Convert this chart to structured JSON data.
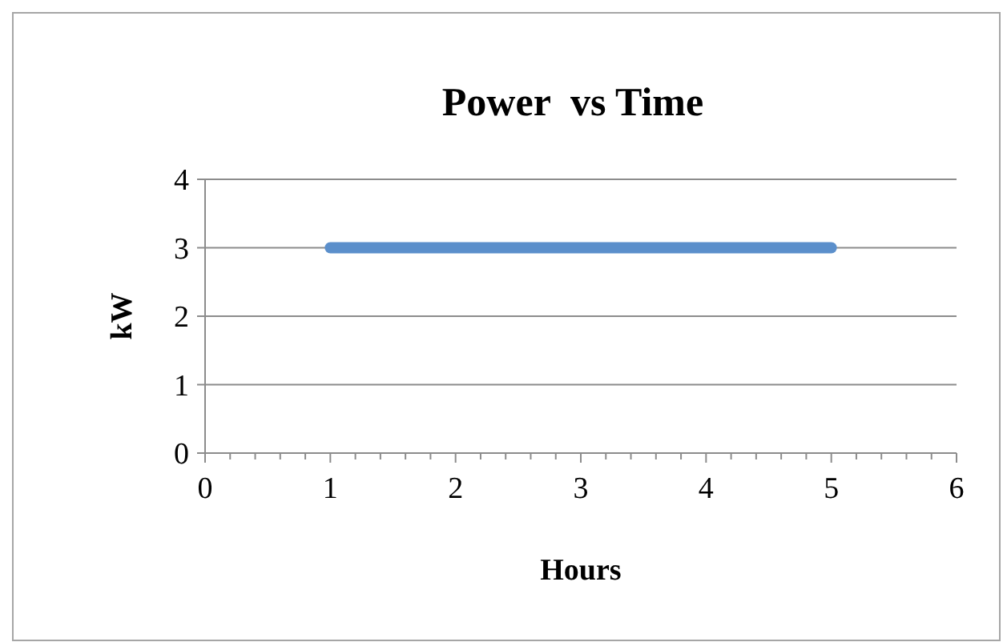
{
  "chart_data": {
    "type": "line",
    "title": "Power  vs Time",
    "xlabel": "Hours",
    "ylabel": "kW",
    "x": [
      1,
      5
    ],
    "series": [
      {
        "color": "#5b8fcb",
        "values": [
          3,
          3
        ]
      }
    ],
    "xlim": [
      0,
      6
    ],
    "ylim": [
      0,
      4
    ],
    "xticks": [
      0,
      {
        "value": 0.2,
        "label": null
      },
      {
        "value": 0.4,
        "label": null
      },
      {
        "value": 0.6,
        "label": null
      },
      {
        "value": 0.8,
        "label": null
      },
      1,
      {
        "value": 1.2,
        "label": null
      },
      {
        "value": 1.4,
        "label": null
      },
      {
        "value": 1.6,
        "label": null
      },
      {
        "value": 1.8,
        "label": null
      },
      2,
      {
        "value": 2.2,
        "label": null
      },
      {
        "value": 2.4,
        "label": null
      },
      {
        "value": 2.6,
        "label": null
      },
      {
        "value": 2.8,
        "label": null
      },
      3,
      {
        "value": 3.2,
        "label": null
      },
      {
        "value": 3.4,
        "label": null
      },
      {
        "value": 3.6,
        "label": null
      },
      {
        "value": 3.8,
        "label": null
      },
      4,
      {
        "value": 4.2,
        "label": null
      },
      {
        "value": 4.4,
        "label": null
      },
      {
        "value": 4.6,
        "label": null
      },
      {
        "value": 4.8,
        "label": null
      },
      5,
      {
        "value": 5.2,
        "label": null
      },
      {
        "value": 5.4,
        "label": null
      },
      {
        "value": 5.6,
        "label": null
      },
      {
        "value": 5.8,
        "label": null
      },
      6
    ],
    "yticks": [
      0,
      1,
      2,
      3,
      4
    ],
    "grid": "y",
    "marker": "none",
    "line_style": "solid"
  }
}
